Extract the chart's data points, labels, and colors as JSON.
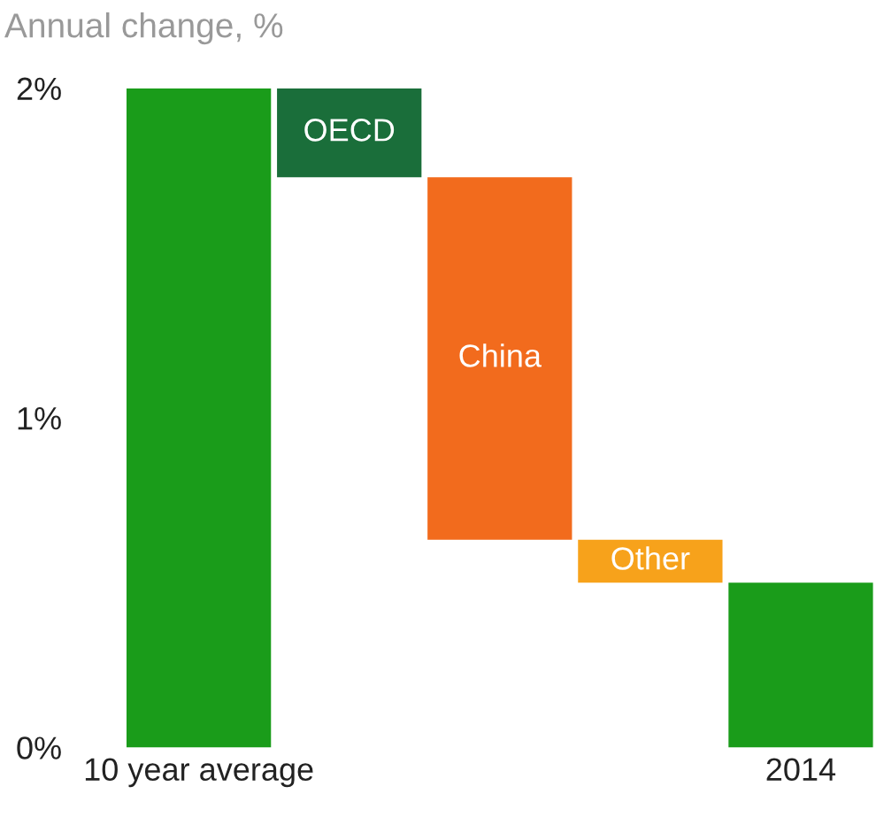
{
  "chart_data": {
    "type": "bar",
    "title": "Annual change, %",
    "categories": [
      "10 year average",
      "OECD",
      "China",
      "Other",
      "2014"
    ],
    "values": [
      2.0,
      -0.27,
      -1.1,
      -0.13,
      0.5
    ],
    "base": [
      null,
      2.0,
      1.73,
      0.63,
      null
    ],
    "colors": [
      "#1a9c1a",
      "#1a6e3a",
      "#f26b1d",
      "#f7a21b",
      "#1a9c1a"
    ],
    "ylim": [
      0,
      2
    ],
    "yticks": [
      {
        "value": 0,
        "label": "0%"
      },
      {
        "value": 1,
        "label": "1%"
      },
      {
        "value": 2,
        "label": "2%"
      }
    ],
    "grid": false
  }
}
